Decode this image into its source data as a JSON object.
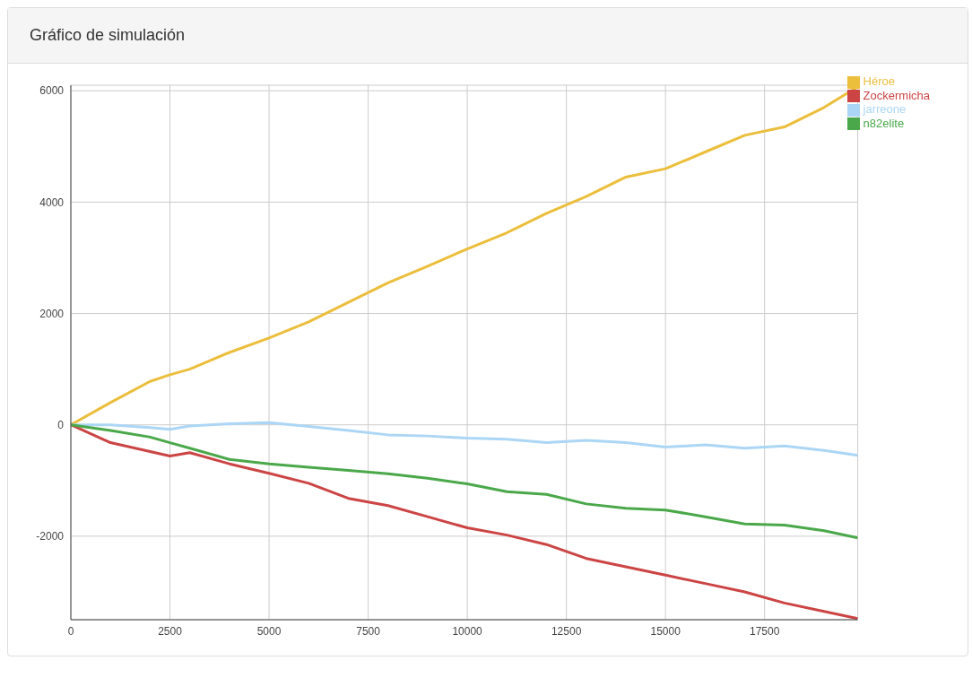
{
  "chart_data": {
    "type": "line",
    "title": "Gráfico de simulación",
    "x": [
      0,
      1000,
      2000,
      2500,
      3000,
      4000,
      5000,
      6000,
      7000,
      8000,
      9000,
      10000,
      11000,
      12000,
      13000,
      14000,
      15000,
      16000,
      17000,
      18000,
      19000,
      19850
    ],
    "series": [
      {
        "name": "Héroe",
        "color": "#ebbe3c",
        "values": [
          0,
          400,
          780,
          900,
          1000,
          1300,
          1560,
          1850,
          2200,
          2550,
          2850,
          3160,
          3450,
          3800,
          4100,
          4450,
          4600,
          4900,
          5200,
          5350,
          5700,
          6070
        ]
      },
      {
        "name": "jarreone",
        "color": "#acd6f5",
        "values": [
          0,
          0,
          -50,
          -80,
          -20,
          20,
          40,
          -30,
          -100,
          -180,
          -200,
          -240,
          -260,
          -320,
          -280,
          -320,
          -400,
          -360,
          -420,
          -380,
          -460,
          -550
        ]
      },
      {
        "name": "Zockermicha",
        "color": "#cc4444",
        "values": [
          0,
          -320,
          -480,
          -560,
          -500,
          -700,
          -870,
          -1050,
          -1320,
          -1450,
          -1650,
          -1850,
          -1980,
          -2150,
          -2400,
          -2550,
          -2700,
          -2850,
          -3000,
          -3200,
          -3350,
          -3480
        ]
      },
      {
        "name": "n82elite",
        "color": "#4aa84a",
        "values": [
          0,
          -100,
          -220,
          -320,
          -420,
          -620,
          -700,
          -760,
          -820,
          -880,
          -960,
          -1060,
          -1200,
          -1250,
          -1420,
          -1500,
          -1530,
          -1650,
          -1780,
          -1800,
          -1900,
          -2030
        ]
      }
    ],
    "xlim": [
      0,
      19850
    ],
    "xticks": [
      0,
      2500,
      5000,
      7500,
      10000,
      12500,
      15000,
      17500
    ],
    "ylim": [
      -3500,
      6100
    ],
    "yticks": [
      -2000,
      0,
      2000,
      4000,
      6000
    ],
    "grid": true,
    "legend": "top right",
    "marker": "none",
    "line_style": "solid"
  }
}
